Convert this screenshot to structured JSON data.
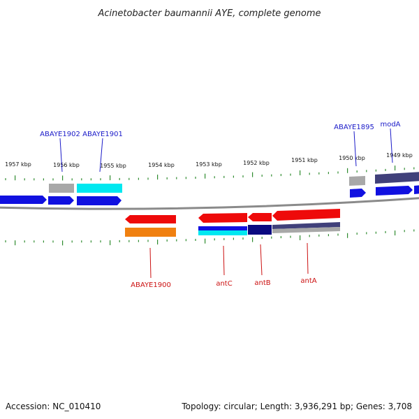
{
  "title": "Acinetobacter baumannii AYE, complete genome",
  "footer": {
    "accession": "Accession: NC_010410",
    "summary": "Topology: circular; Length: 3,936,291 bp; Genes: 3,708"
  },
  "ticks": [
    {
      "label": "1957 kbp"
    },
    {
      "label": "1956 kbp"
    },
    {
      "label": "1955 kbp"
    },
    {
      "label": "1954 kbp"
    },
    {
      "label": "1953 kbp"
    },
    {
      "label": "1952 kbp"
    },
    {
      "label": "1951 kbp"
    },
    {
      "label": "1950 kbp"
    },
    {
      "label": "1949 kbp"
    }
  ],
  "gene_labels": {
    "top": [
      "ABAYE1902",
      "ABAYE1901",
      "ABAYE1895",
      "modA"
    ],
    "bottom": [
      "ABAYE1900",
      "antC",
      "antB",
      "antA"
    ]
  },
  "colors": {
    "backbone": "#8a8a8a",
    "tick": "#2e8b2e",
    "cds_blue": "#1010e0",
    "gene_grey": "#a8a8a8",
    "gene_cyan": "#00e8f0",
    "gene_red": "#ee0a0a",
    "gene_orange": "#f08010",
    "gene_navy": "#0a0a80",
    "gene_slate": "#40407a"
  }
}
